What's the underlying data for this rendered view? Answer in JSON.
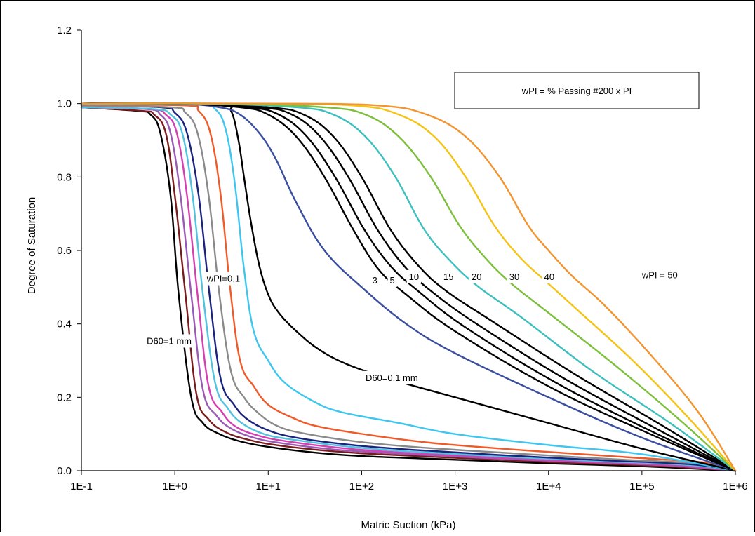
{
  "chart_data": {
    "type": "line",
    "title": "",
    "xlabel": "Matric Suction (kPa)",
    "ylabel": "Degree of Saturation",
    "x_scale": "log",
    "xlim": [
      0.1,
      1000000
    ],
    "ylim": [
      0.0,
      1.2
    ],
    "x_ticks": [
      0.1,
      1,
      10,
      100,
      1000,
      10000,
      100000,
      1000000
    ],
    "x_tick_labels": [
      "1E-1",
      "1E+0",
      "1E+1",
      "1E+2",
      "1E+3",
      "1E+4",
      "1E+5",
      "1E+6"
    ],
    "y_ticks": [
      0.0,
      0.2,
      0.4,
      0.6,
      0.8,
      1.0,
      1.2
    ],
    "y_tick_labels": [
      "0.0",
      "0.2",
      "0.4",
      "0.6",
      "0.8",
      "1.0",
      "1.2"
    ],
    "grid": false,
    "legend_box_text": "wPI = % Passing #200 x PI",
    "legend_box_position": "top-right",
    "annotations": [
      {
        "text": "wPI=0.1",
        "x": 2.2,
        "y": 0.515
      },
      {
        "text": "3",
        "x": 130,
        "y": 0.51
      },
      {
        "text": "5",
        "x": 200,
        "y": 0.51
      },
      {
        "text": "10",
        "x": 320,
        "y": 0.52
      },
      {
        "text": "15",
        "x": 750,
        "y": 0.52
      },
      {
        "text": "20",
        "x": 1500,
        "y": 0.52
      },
      {
        "text": "30",
        "x": 3800,
        "y": 0.52
      },
      {
        "text": "40",
        "x": 9000,
        "y": 0.52
      },
      {
        "text": "wPI = 50",
        "x": 100000,
        "y": 0.525
      },
      {
        "text": "D60=1 mm",
        "x": 0.5,
        "y": 0.345
      },
      {
        "text": "D60=0.1 mm",
        "x": 110,
        "y": 0.245
      }
    ],
    "series": [
      {
        "group": "D60",
        "color": "#000000",
        "x": [
          0.1,
          0.4,
          0.55,
          0.7,
          0.9,
          1.1,
          1.5,
          2,
          3,
          5,
          10,
          30,
          100,
          1000,
          10000,
          100000,
          1000000
        ],
        "y": [
          0.99,
          0.98,
          0.97,
          0.92,
          0.75,
          0.48,
          0.2,
          0.13,
          0.1,
          0.08,
          0.065,
          0.05,
          0.04,
          0.03,
          0.02,
          0.012,
          0.0
        ]
      },
      {
        "group": "D60",
        "color": "#7b1b1b",
        "x": [
          0.1,
          0.45,
          0.6,
          0.8,
          1.0,
          1.3,
          1.7,
          2.3,
          3.5,
          6,
          12,
          40,
          150,
          1500,
          15000,
          150000,
          1000000
        ],
        "y": [
          0.99,
          0.98,
          0.97,
          0.92,
          0.75,
          0.48,
          0.21,
          0.14,
          0.105,
          0.085,
          0.07,
          0.055,
          0.045,
          0.033,
          0.022,
          0.013,
          0.0
        ]
      },
      {
        "group": "D60",
        "color": "#9b59b6",
        "x": [
          0.1,
          0.5,
          0.7,
          0.9,
          1.15,
          1.5,
          2.0,
          2.8,
          4,
          7,
          14,
          50,
          200,
          2000,
          20000,
          200000,
          1000000
        ],
        "y": [
          0.99,
          0.985,
          0.97,
          0.92,
          0.75,
          0.48,
          0.22,
          0.15,
          0.115,
          0.09,
          0.075,
          0.058,
          0.048,
          0.035,
          0.024,
          0.014,
          0.0
        ]
      },
      {
        "group": "D60",
        "color": "#d63fb2",
        "x": [
          0.1,
          0.55,
          0.8,
          1.05,
          1.35,
          1.75,
          2.3,
          3.2,
          4.5,
          8,
          16,
          60,
          250,
          2500,
          25000,
          250000,
          1000000
        ],
        "y": [
          0.99,
          0.985,
          0.97,
          0.92,
          0.75,
          0.48,
          0.23,
          0.16,
          0.12,
          0.095,
          0.08,
          0.062,
          0.05,
          0.037,
          0.025,
          0.015,
          0.0
        ]
      },
      {
        "group": "D60",
        "color": "#4fc3e0",
        "x": [
          0.1,
          0.6,
          0.9,
          1.2,
          1.55,
          2.0,
          2.7,
          3.7,
          5.2,
          9,
          18,
          70,
          300,
          3000,
          30000,
          300000,
          1000000
        ],
        "y": [
          0.99,
          0.985,
          0.97,
          0.92,
          0.75,
          0.48,
          0.24,
          0.17,
          0.13,
          0.1,
          0.085,
          0.066,
          0.053,
          0.039,
          0.027,
          0.016,
          0.0
        ]
      },
      {
        "group": "D60",
        "color": "#1a237e",
        "x": [
          0.1,
          0.7,
          1.0,
          1.35,
          1.8,
          2.35,
          3.1,
          4.3,
          6,
          10,
          20,
          80,
          350,
          3500,
          35000,
          350000,
          1000000
        ],
        "y": [
          0.995,
          0.99,
          0.975,
          0.92,
          0.75,
          0.48,
          0.25,
          0.18,
          0.14,
          0.11,
          0.09,
          0.07,
          0.057,
          0.042,
          0.029,
          0.017,
          0.0
        ]
      },
      {
        "group": "D60",
        "color": "#8a8a8a",
        "x": [
          0.1,
          0.9,
          1.3,
          1.75,
          2.3,
          3.0,
          4.0,
          5.5,
          8,
          13,
          26,
          100,
          450,
          4500,
          45000,
          450000,
          1000000
        ],
        "y": [
          0.995,
          0.99,
          0.975,
          0.92,
          0.75,
          0.48,
          0.27,
          0.2,
          0.155,
          0.12,
          0.1,
          0.078,
          0.063,
          0.047,
          0.032,
          0.019,
          0.0
        ]
      },
      {
        "group": "D60",
        "color": "#f05a28",
        "x": [
          0.1,
          1.3,
          1.8,
          2.4,
          3.1,
          3.9,
          5.0,
          7,
          10,
          18,
          35,
          140,
          600,
          6000,
          60000,
          600000,
          1000000
        ],
        "y": [
          0.997,
          0.995,
          0.98,
          0.92,
          0.75,
          0.5,
          0.3,
          0.23,
          0.18,
          0.145,
          0.12,
          0.095,
          0.075,
          0.055,
          0.038,
          0.02,
          0.0
        ]
      },
      {
        "group": "D60",
        "color": "#3cc6f0",
        "x": [
          0.1,
          1.8,
          2.7,
          3.5,
          4.4,
          5.5,
          7,
          10,
          15,
          30,
          60,
          250,
          1000,
          10000,
          100000,
          1000000
        ],
        "y": [
          0.998,
          0.997,
          0.985,
          0.93,
          0.78,
          0.55,
          0.38,
          0.3,
          0.24,
          0.19,
          0.16,
          0.13,
          0.1,
          0.07,
          0.045,
          0.0
        ]
      },
      {
        "group": "D60",
        "color": "#000000",
        "x": [
          0.1,
          3.0,
          4.0,
          4.8,
          5.5,
          6.5,
          8,
          10,
          13,
          20,
          35,
          70,
          200,
          1000,
          10000,
          100000,
          1000000
        ],
        "y": [
          0.999,
          0.997,
          0.98,
          0.9,
          0.8,
          0.68,
          0.56,
          0.48,
          0.43,
          0.38,
          0.33,
          0.29,
          0.25,
          0.2,
          0.13,
          0.06,
          0.0
        ]
      },
      {
        "group": "wPI",
        "name": "wPI=0.1",
        "color": "#3a4ea0",
        "x": [
          0.1,
          1,
          3,
          5,
          8,
          12,
          20,
          40,
          100,
          300,
          1000,
          10000,
          100000,
          1000000
        ],
        "y": [
          1.0,
          1.0,
          0.99,
          0.97,
          0.92,
          0.85,
          0.73,
          0.6,
          0.5,
          0.4,
          0.32,
          0.2,
          0.09,
          0.0
        ]
      },
      {
        "group": "wPI",
        "name": "3",
        "color": "#000000",
        "x": [
          0.1,
          1,
          5,
          10,
          20,
          40,
          80,
          150,
          300,
          1000,
          10000,
          100000,
          1000000
        ],
        "y": [
          1.0,
          1.0,
          0.99,
          0.97,
          0.91,
          0.8,
          0.66,
          0.55,
          0.48,
          0.38,
          0.23,
          0.11,
          0.0
        ]
      },
      {
        "group": "wPI",
        "name": "5",
        "color": "#000000",
        "x": [
          0.1,
          1,
          6,
          13,
          26,
          52,
          105,
          200,
          400,
          1300,
          12000,
          110000,
          1000000
        ],
        "y": [
          1.0,
          1.0,
          0.99,
          0.97,
          0.91,
          0.8,
          0.66,
          0.56,
          0.49,
          0.39,
          0.24,
          0.115,
          0.0
        ]
      },
      {
        "group": "wPI",
        "name": "10",
        "color": "#000000",
        "x": [
          0.1,
          1,
          8,
          18,
          36,
          72,
          145,
          280,
          550,
          1700,
          15000,
          130000,
          1000000
        ],
        "y": [
          1.0,
          1.0,
          0.99,
          0.97,
          0.91,
          0.8,
          0.66,
          0.56,
          0.49,
          0.4,
          0.25,
          0.12,
          0.0
        ]
      },
      {
        "group": "wPI",
        "name": "15",
        "color": "#000000",
        "x": [
          0.1,
          1,
          10,
          24,
          50,
          100,
          200,
          400,
          800,
          2400,
          20000,
          160000,
          1000000
        ],
        "y": [
          1.0,
          1.0,
          0.99,
          0.97,
          0.91,
          0.8,
          0.66,
          0.56,
          0.49,
          0.41,
          0.26,
          0.125,
          0.0
        ]
      },
      {
        "group": "wPI",
        "name": "20",
        "color": "#3dbfbf",
        "x": [
          0.1,
          2,
          20,
          50,
          110,
          230,
          460,
          900,
          1800,
          5000,
          30000,
          200000,
          1000000
        ],
        "y": [
          1.0,
          1.0,
          0.99,
          0.97,
          0.91,
          0.8,
          0.66,
          0.57,
          0.5,
          0.42,
          0.27,
          0.13,
          0.0
        ]
      },
      {
        "group": "wPI",
        "name": "30",
        "color": "#7cbf3b",
        "x": [
          0.1,
          3,
          40,
          110,
          250,
          550,
          1100,
          2100,
          4000,
          10000,
          50000,
          250000,
          1000000
        ],
        "y": [
          1.0,
          1.0,
          0.99,
          0.97,
          0.91,
          0.8,
          0.67,
          0.58,
          0.51,
          0.43,
          0.29,
          0.14,
          0.0
        ]
      },
      {
        "group": "wPI",
        "name": "40",
        "color": "#f5c314",
        "x": [
          0.1,
          5,
          80,
          250,
          600,
          1300,
          2600,
          5000,
          9000,
          20000,
          80000,
          300000,
          1000000
        ],
        "y": [
          1.0,
          1.0,
          0.995,
          0.97,
          0.91,
          0.8,
          0.67,
          0.58,
          0.52,
          0.44,
          0.3,
          0.15,
          0.0
        ]
      },
      {
        "group": "wPI",
        "name": "50",
        "color": "#f29530",
        "x": [
          0.1,
          10,
          150,
          500,
          1300,
          3000,
          6000,
          10000,
          18000,
          40000,
          120000,
          400000,
          1000000
        ],
        "y": [
          1.0,
          1.0,
          0.995,
          0.97,
          0.91,
          0.8,
          0.67,
          0.6,
          0.53,
          0.45,
          0.32,
          0.16,
          0.0
        ]
      }
    ]
  }
}
